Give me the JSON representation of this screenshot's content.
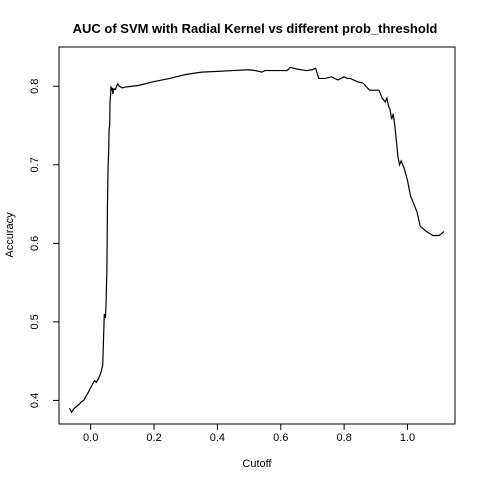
{
  "chart_data": {
    "type": "line",
    "title": "AUC of SVM with Radial Kernel vs different prob_threshold",
    "xlabel": "Cutoff",
    "ylabel": "Accuracy",
    "xlim": [
      -0.1,
      1.15
    ],
    "ylim": [
      0.37,
      0.85
    ],
    "x_ticks": [
      0.0,
      0.2,
      0.4,
      0.6,
      0.8,
      1.0
    ],
    "x_tick_labels": [
      "0.0",
      "0.2",
      "0.4",
      "0.6",
      "0.8",
      "1.0"
    ],
    "y_ticks": [
      0.4,
      0.5,
      0.6,
      0.7,
      0.8
    ],
    "y_tick_labels": [
      "0.4",
      "0.5",
      "0.6",
      "0.7",
      "0.8"
    ],
    "grid": false,
    "legend": "none",
    "line_color": "#000000",
    "series": [
      {
        "x": [
          -0.067,
          -0.06,
          -0.052,
          -0.045,
          -0.037,
          -0.03,
          -0.022,
          -0.015,
          -0.008,
          -0.002,
          0.005,
          0.012,
          0.018,
          0.025,
          0.032,
          0.038,
          0.043,
          0.047,
          0.049,
          0.05,
          0.051,
          0.052,
          0.053,
          0.055,
          0.057,
          0.058,
          0.06,
          0.061,
          0.063,
          0.064,
          0.066,
          0.068,
          0.07,
          0.073,
          0.078,
          0.085,
          0.09,
          0.1,
          0.11,
          0.13,
          0.15,
          0.2,
          0.25,
          0.3,
          0.35,
          0.4,
          0.45,
          0.5,
          0.52,
          0.54,
          0.55,
          0.6,
          0.62,
          0.63,
          0.65,
          0.68,
          0.7,
          0.71,
          0.72,
          0.74,
          0.76,
          0.78,
          0.8,
          0.81,
          0.82,
          0.84,
          0.86,
          0.88,
          0.9,
          0.91,
          0.92,
          0.93,
          0.935,
          0.94,
          0.945,
          0.95,
          0.955,
          0.96,
          0.965,
          0.97,
          0.975,
          0.98,
          0.99,
          1.0,
          1.01,
          1.02,
          1.03,
          1.04,
          1.06,
          1.08,
          1.1,
          1.115
        ],
        "y": [
          0.39,
          0.385,
          0.39,
          0.392,
          0.395,
          0.398,
          0.4,
          0.405,
          0.41,
          0.415,
          0.42,
          0.425,
          0.423,
          0.428,
          0.435,
          0.445,
          0.51,
          0.505,
          0.53,
          0.55,
          0.56,
          0.6,
          0.65,
          0.7,
          0.72,
          0.745,
          0.75,
          0.78,
          0.79,
          0.8,
          0.795,
          0.798,
          0.79,
          0.797,
          0.796,
          0.803,
          0.8,
          0.798,
          0.799,
          0.8,
          0.801,
          0.806,
          0.81,
          0.815,
          0.818,
          0.819,
          0.82,
          0.821,
          0.82,
          0.818,
          0.82,
          0.82,
          0.82,
          0.824,
          0.822,
          0.82,
          0.821,
          0.823,
          0.81,
          0.81,
          0.812,
          0.808,
          0.812,
          0.81,
          0.81,
          0.806,
          0.804,
          0.795,
          0.795,
          0.795,
          0.785,
          0.78,
          0.785,
          0.775,
          0.77,
          0.758,
          0.765,
          0.75,
          0.73,
          0.71,
          0.7,
          0.705,
          0.695,
          0.68,
          0.66,
          0.65,
          0.64,
          0.622,
          0.615,
          0.61,
          0.61,
          0.615
        ]
      }
    ]
  }
}
